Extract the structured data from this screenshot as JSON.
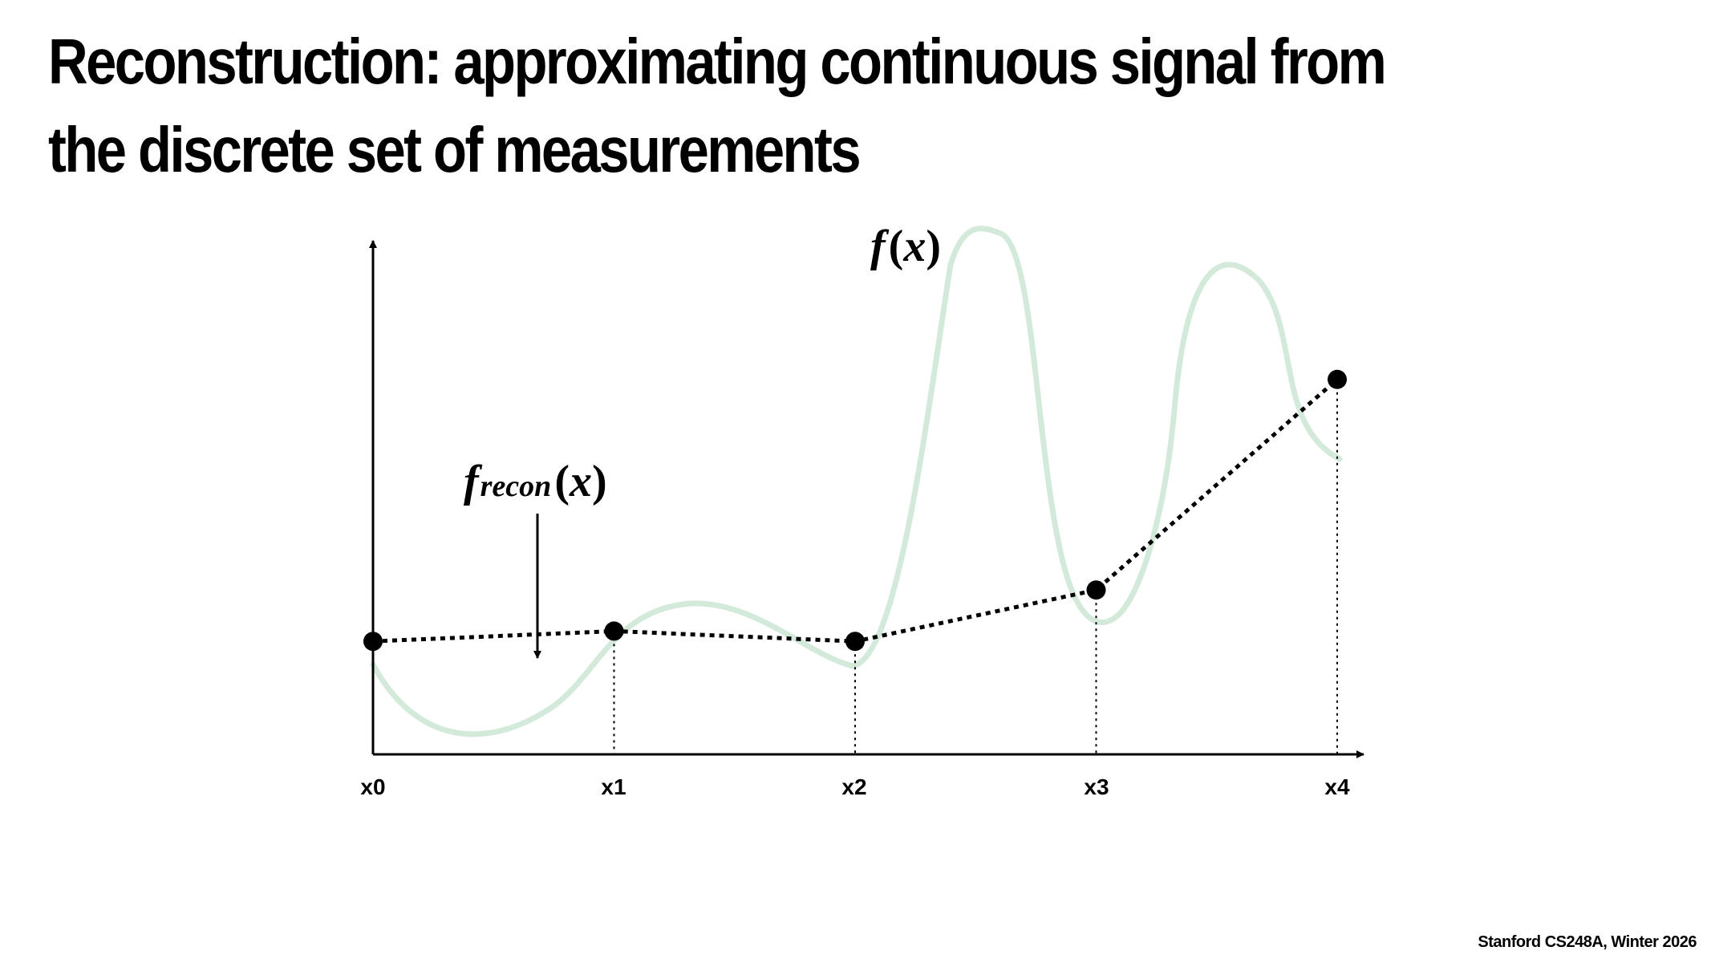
{
  "slide": {
    "title_lines": [
      "Reconstruction: approximating continuous signal from",
      "the discrete set of measurements"
    ],
    "footer": "Stanford CS248A, Winter 2026"
  },
  "diagram": {
    "signal_label": {
      "func": "f",
      "open": "(",
      "var": "x",
      "close": ")"
    },
    "recon_label": {
      "func": "f",
      "sub": "recon",
      "open": "(",
      "var": "x",
      "close": ")"
    },
    "ticks": [
      "x0",
      "x1",
      "x2",
      "x3",
      "x4"
    ],
    "samples": [
      {
        "x": 0,
        "y": 0.22
      },
      {
        "x": 1,
        "y": 0.24
      },
      {
        "x": 2,
        "y": 0.22
      },
      {
        "x": 3,
        "y": 0.32
      },
      {
        "x": 4,
        "y": 0.73
      }
    ],
    "colors": {
      "signal": "#d3eadb",
      "axis": "#000000",
      "recon": "#000000"
    }
  }
}
